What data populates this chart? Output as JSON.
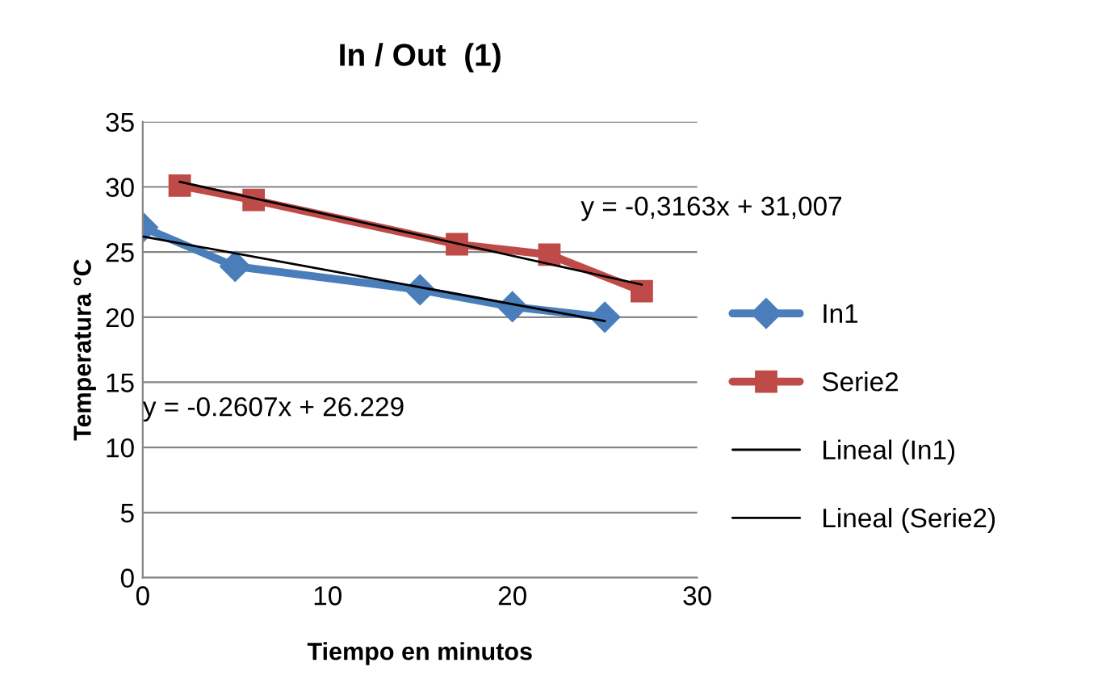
{
  "chart_data": {
    "type": "line",
    "title": "In / Out  (1)",
    "xlabel": "Tiempo en minutos",
    "ylabel": "Temperatura °C",
    "series": [
      {
        "name": "In1",
        "color": "#4a7ebb",
        "marker": "diamond",
        "x": [
          0,
          5,
          15,
          20,
          25
        ],
        "values": [
          26.9,
          23.9,
          22.1,
          20.8,
          20.0
        ]
      },
      {
        "name": "Serie2",
        "color": "#be4b48",
        "marker": "square",
        "x": [
          2,
          6,
          17,
          22,
          27
        ],
        "values": [
          30.1,
          29.0,
          25.6,
          24.8,
          22.0
        ]
      },
      {
        "name": "Lineal (In1)",
        "color": "#000000",
        "marker": "none",
        "x": [
          0,
          25
        ],
        "values": [
          26.2,
          19.7
        ]
      },
      {
        "name": "Lineal (Serie2)",
        "color": "#000000",
        "marker": "none",
        "x": [
          2,
          27
        ],
        "values": [
          30.4,
          22.5
        ]
      }
    ],
    "annotations": [
      "y = -0,3163x + 31,007",
      "y = -0.2607x + 26.229"
    ],
    "xlim": [
      0,
      30
    ],
    "xticks": [
      0,
      10,
      20,
      30
    ],
    "ylim": [
      0,
      35
    ],
    "yticks": [
      0,
      5,
      10,
      15,
      20,
      25,
      30,
      35
    ],
    "grid": "y",
    "legend": "right",
    "line_style": "solid"
  }
}
